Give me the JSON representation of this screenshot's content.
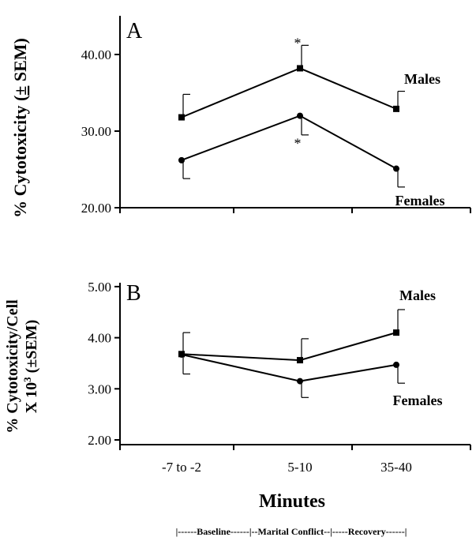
{
  "chart_data": [
    {
      "type": "line",
      "panel_label": "A",
      "ylabel": "% Cytotoxicity (± SEM)",
      "ylabel_parts": [
        "% Cytotoxicity (",
        "±",
        " SEM)"
      ],
      "ylim": [
        20,
        45
      ],
      "yticks": [
        "20.00",
        "30.00",
        "40.00"
      ],
      "ytick_values": [
        20,
        30,
        40
      ],
      "categories": [
        "-7 to -2",
        "5-10",
        "35-40"
      ],
      "series": [
        {
          "name": "Males",
          "marker": "square",
          "values": [
            31.8,
            38.2,
            32.9
          ],
          "sem": [
            3.0,
            3.0,
            2.3
          ]
        },
        {
          "name": "Females",
          "marker": "circle",
          "values": [
            26.2,
            32.0,
            25.1
          ],
          "sem": [
            2.4,
            2.5,
            2.4
          ]
        }
      ],
      "annotations": [
        {
          "text": "*",
          "category": "5-10",
          "value": 41.7
        },
        {
          "text": "*",
          "category": "5-10",
          "value": 28.6
        }
      ]
    },
    {
      "type": "line",
      "panel_label": "B",
      "ylabel_line1": "% Cytotoxicity/Cell",
      "ylabel_line2_prefix": "X 10",
      "ylabel_line2_sup": "3",
      "ylabel_line2_suffix": " (±SEM)",
      "ylim": [
        2,
        5
      ],
      "yticks": [
        "2.00",
        "3.00",
        "4.00",
        "5.00"
      ],
      "ytick_values": [
        2,
        3,
        4,
        5
      ],
      "categories": [
        "-7 to -2",
        "5-10",
        "35-40"
      ],
      "xtick_labels": [
        "-7 to -2",
        "5-10",
        "35-40"
      ],
      "xlabel": "Minutes",
      "series": [
        {
          "name": "Males",
          "marker": "square",
          "values": [
            3.68,
            3.56,
            4.1
          ],
          "sem": [
            0.42,
            0.42,
            0.45
          ]
        },
        {
          "name": "Females",
          "marker": "circle",
          "values": [
            3.67,
            3.15,
            3.47
          ],
          "sem": [
            0.38,
            0.32,
            0.36
          ]
        }
      ]
    }
  ],
  "phase_bar": "|------Baseline------|--Marital Conflict--|-----Recovery------|"
}
